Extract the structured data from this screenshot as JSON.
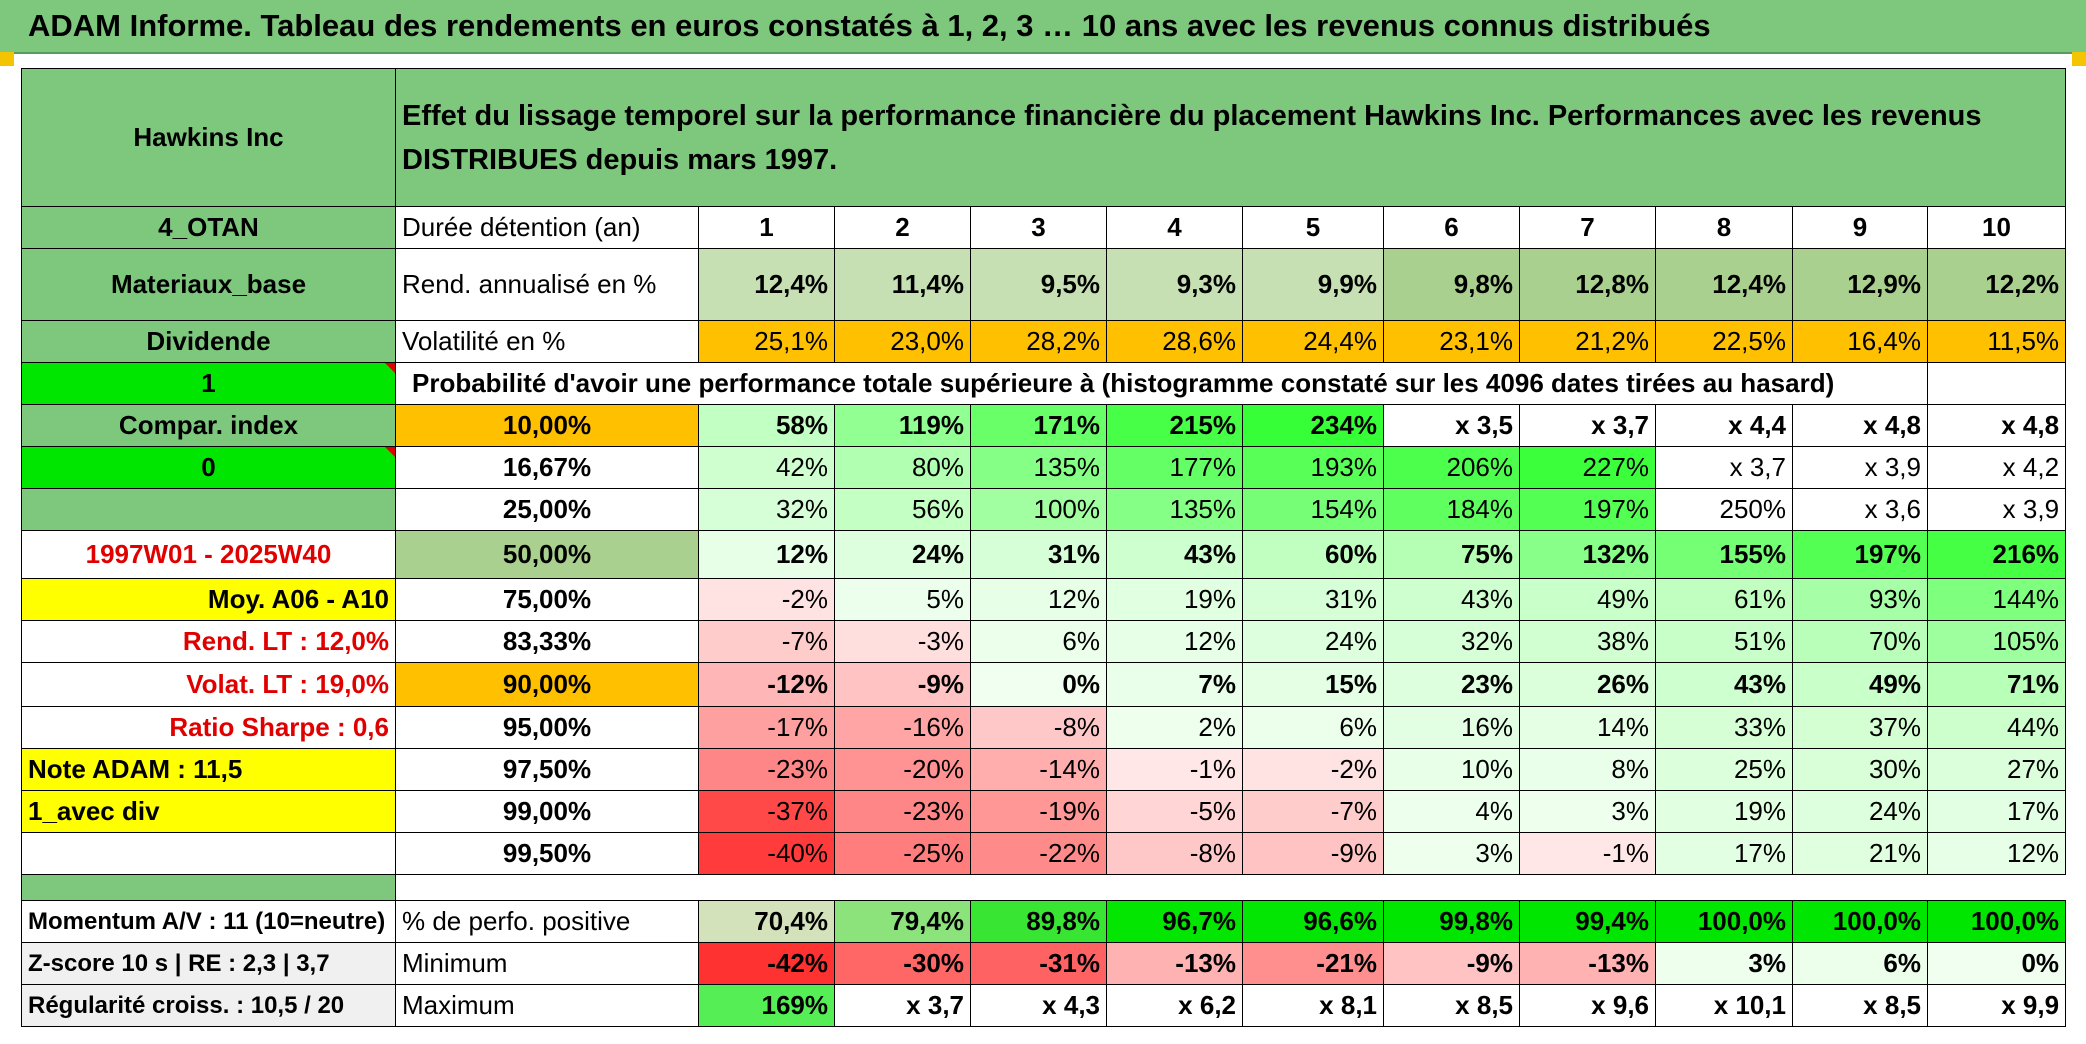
{
  "title": "ADAM Informe. Tableau des rendements en euros constatés à 1, 2, 3 … 10 ans avec les revenus connus distribués",
  "header": {
    "company": "Hawkins Inc",
    "description": "Effet du lissage temporel sur la performance financière du placement Hawkins Inc. Performances avec les revenus DISTRIBUES depuis mars 1997."
  },
  "left": {
    "sector": "4_OTAN",
    "category": "Materiaux_base",
    "dividend": "Dividende",
    "flag1": "1",
    "compar": "Compar. index",
    "flag0": "0",
    "period": "1997W01 - 2025W40",
    "moy": "Moy. A06 - A10",
    "rend_lt": "Rend. LT :   12,0%",
    "volat_lt": "Volat. LT :   19,0%",
    "sharpe": "Ratio Sharpe :    0,6",
    "note": "Note ADAM : 11,5",
    "avec_div": "1_avec div",
    "momentum": "Momentum A/V : 11 (10=neutre)",
    "zscore": "Z-score 10 s | RE : 2,3 | 3,7",
    "regularite": "Régularité croiss. : 10,5 / 20"
  },
  "labels": {
    "duree": "Durée détention (an)",
    "rend": "Rend. annualisé en %",
    "volat": "Volatilité en %",
    "proba": "Probabilité d'avoir une performance totale supérieure à (histogramme constaté sur les 4096 dates tirées au hasard)",
    "positive": "% de perfo. positive",
    "minimum": "Minimum",
    "maximum": "Maximum"
  },
  "years": [
    "1",
    "2",
    "3",
    "4",
    "5",
    "6",
    "7",
    "8",
    "9",
    "10"
  ],
  "rend": [
    "12,4%",
    "11,4%",
    "9,5%",
    "9,3%",
    "9,9%",
    "9,8%",
    "12,8%",
    "12,4%",
    "12,9%",
    "12,2%"
  ],
  "volat": [
    "25,1%",
    "23,0%",
    "28,2%",
    "28,6%",
    "24,4%",
    "23,1%",
    "21,2%",
    "22,5%",
    "16,4%",
    "11,5%"
  ],
  "rows": [
    {
      "pct": "10,00%",
      "values": [
        "58%",
        "119%",
        "171%",
        "215%",
        "234%",
        "x 3,5",
        "x 3,7",
        "x 4,4",
        "x 4,8",
        "x 4,8"
      ]
    },
    {
      "pct": "16,67%",
      "values": [
        "42%",
        "80%",
        "135%",
        "177%",
        "193%",
        "206%",
        "227%",
        "x 3,7",
        "x 3,9",
        "x 4,2"
      ]
    },
    {
      "pct": "25,00%",
      "values": [
        "32%",
        "56%",
        "100%",
        "135%",
        "154%",
        "184%",
        "197%",
        "250%",
        "x 3,6",
        "x 3,9"
      ]
    },
    {
      "pct": "50,00%",
      "values": [
        "12%",
        "24%",
        "31%",
        "43%",
        "60%",
        "75%",
        "132%",
        "155%",
        "197%",
        "216%"
      ]
    },
    {
      "pct": "75,00%",
      "values": [
        "-2%",
        "5%",
        "12%",
        "19%",
        "31%",
        "43%",
        "49%",
        "61%",
        "93%",
        "144%"
      ]
    },
    {
      "pct": "83,33%",
      "values": [
        "-7%",
        "-3%",
        "6%",
        "12%",
        "24%",
        "32%",
        "38%",
        "51%",
        "70%",
        "105%"
      ]
    },
    {
      "pct": "90,00%",
      "values": [
        "-12%",
        "-9%",
        "0%",
        "7%",
        "15%",
        "23%",
        "26%",
        "43%",
        "49%",
        "71%"
      ]
    },
    {
      "pct": "95,00%",
      "values": [
        "-17%",
        "-16%",
        "-8%",
        "2%",
        "6%",
        "16%",
        "14%",
        "33%",
        "37%",
        "44%"
      ]
    },
    {
      "pct": "97,50%",
      "values": [
        "-23%",
        "-20%",
        "-14%",
        "-1%",
        "-2%",
        "10%",
        "8%",
        "25%",
        "30%",
        "27%"
      ]
    },
    {
      "pct": "99,00%",
      "values": [
        "-37%",
        "-23%",
        "-19%",
        "-5%",
        "-7%",
        "4%",
        "3%",
        "19%",
        "24%",
        "17%"
      ]
    },
    {
      "pct": "99,50%",
      "values": [
        "-40%",
        "-25%",
        "-22%",
        "-8%",
        "-9%",
        "3%",
        "-1%",
        "17%",
        "21%",
        "12%"
      ]
    }
  ],
  "positive": [
    "70,4%",
    "79,4%",
    "89,8%",
    "96,7%",
    "96,6%",
    "99,8%",
    "99,4%",
    "100,0%",
    "100,0%",
    "100,0%"
  ],
  "minimum": [
    "-42%",
    "-30%",
    "-31%",
    "-13%",
    "-21%",
    "-9%",
    "-13%",
    "3%",
    "6%",
    "0%"
  ],
  "maximum": [
    "169%",
    "x 3,7",
    "x 4,3",
    "x 6,2",
    "x 8,1",
    "x 8,5",
    "x 9,6",
    "x 10,1",
    "x 8,5",
    "x 9,9"
  ],
  "colors": {
    "header_green": "#7ec87e",
    "bright_green": "#00e600",
    "yellow": "#ffff00",
    "orange": "#ffc000",
    "red_text": "#e00000"
  }
}
